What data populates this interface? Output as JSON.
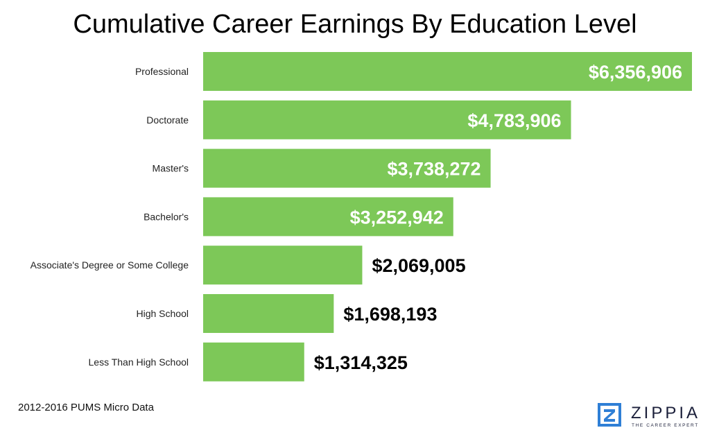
{
  "title": "Cumulative Career Earnings By Education Level",
  "source": "2012-2016 PUMS Micro Data",
  "brand": {
    "name": "ZIPPIA",
    "tagline": "THE CAREER EXPERT",
    "logo_icon": "zippia-z-logo-icon"
  },
  "colors": {
    "bar": "#7dc858",
    "label_inside": "#ffffff",
    "label_outside": "#000000",
    "brand": "#2f7fd6"
  },
  "chart_data": {
    "type": "bar",
    "orientation": "horizontal",
    "title": "Cumulative Career Earnings By Education Level",
    "categories": [
      "Professional",
      "Doctorate",
      "Master's",
      "Bachelor's",
      "Associate's Degree or Some College",
      "High School",
      "Less Than High School"
    ],
    "values": [
      6356906,
      4783906,
      3738272,
      3252942,
      2069005,
      1698193,
      1314325
    ],
    "value_labels": [
      "$6,356,906",
      "$4,783,906",
      "$3,738,272",
      "$3,252,942",
      "$2,069,005",
      "$1,698,193",
      "$1,314,325"
    ],
    "xlim": [
      0,
      6356906
    ],
    "grid": false,
    "legend": "none"
  }
}
